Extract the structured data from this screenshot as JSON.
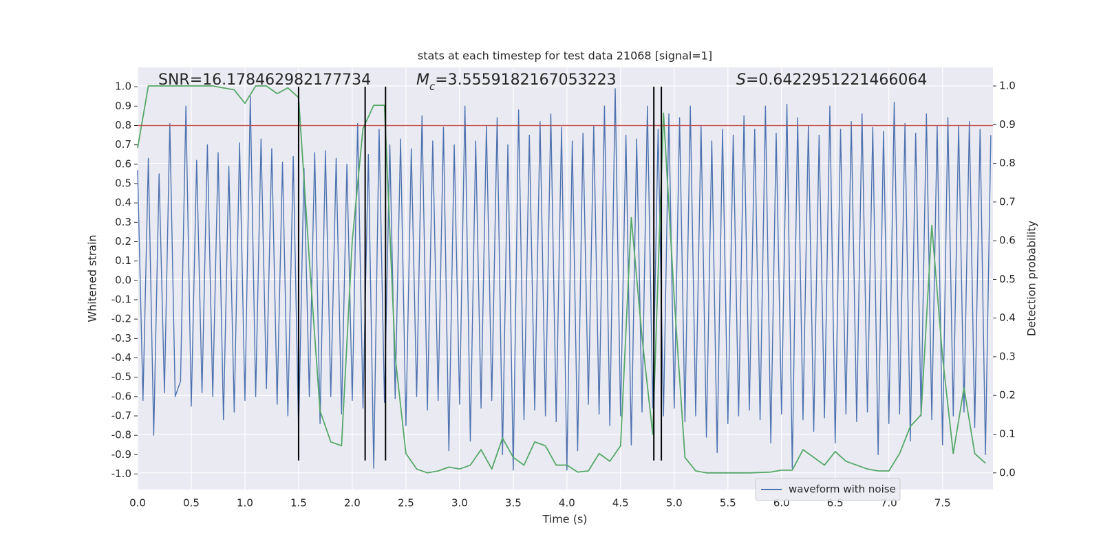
{
  "chart_data": {
    "type": "line",
    "title": "stats at each timestep for test data 21068 [signal=1]",
    "xlabel": "Time (s)",
    "ylabel": "Whitened strain",
    "y2label": "Detection probability",
    "annotations": {
      "snr": "SNR=16.178462982177734",
      "mc": {
        "symbol": "M",
        "subscript": "c",
        "value": "=3.5559182167053223"
      },
      "s": {
        "symbol": "S",
        "value": "=0.6422951221466064"
      }
    },
    "xlim": [
      0,
      7.97
    ],
    "ylim": [
      -1.08,
      1.1
    ],
    "y2lim": [
      -0.043,
      1.048
    ],
    "xticks": [
      {
        "value": 0,
        "label": "0.0"
      },
      0.5,
      {
        "value": 1,
        "label": "1.0"
      },
      1.5,
      {
        "value": 2,
        "label": "2.0"
      },
      2.5,
      {
        "value": 3,
        "label": "3.0"
      },
      3.5,
      {
        "value": 4,
        "label": "4.0"
      },
      4.5,
      {
        "value": 5,
        "label": "5.0"
      },
      5.5,
      {
        "value": 6,
        "label": "6.0"
      },
      6.5,
      {
        "value": 7,
        "label": "7.0"
      },
      7.5
    ],
    "yticks": [
      {
        "value": -1,
        "label": "-1.0"
      },
      -0.9,
      -0.8,
      -0.7,
      -0.6,
      -0.5,
      -0.4,
      -0.3,
      -0.2,
      -0.1,
      {
        "value": 0,
        "label": "0.0"
      },
      0.1,
      0.2,
      0.3,
      0.4,
      0.5,
      0.6,
      0.7,
      0.8,
      0.9,
      {
        "value": 1,
        "label": "1.0"
      }
    ],
    "y2ticks": [
      {
        "value": 0,
        "label": "0.0"
      },
      0.1,
      0.2,
      0.3,
      0.4,
      0.5,
      0.6,
      0.7,
      0.8,
      0.9,
      {
        "value": 1,
        "label": "1.0"
      }
    ],
    "grid": true,
    "legend": "lower right",
    "series": [
      {
        "name": "waveform with noise",
        "color": "#4c72b0",
        "x": [
          0,
          0.05,
          0.1,
          0.15,
          0.2,
          0.25,
          0.3,
          0.35,
          0.4,
          0.45,
          0.5,
          0.55,
          0.6,
          0.65,
          0.7,
          0.75,
          0.8,
          0.85,
          0.9,
          0.95,
          1,
          1.05,
          1.1,
          1.15,
          1.2,
          1.25,
          1.3,
          1.35,
          1.4,
          1.45,
          1.5,
          1.55,
          1.6,
          1.65,
          1.7,
          1.75,
          1.8,
          1.85,
          1.9,
          1.95,
          2,
          2.05,
          2.1,
          2.15,
          2.2,
          2.25,
          2.3,
          2.35,
          2.4,
          2.45,
          2.5,
          2.55,
          2.6,
          2.65,
          2.7,
          2.75,
          2.8,
          2.85,
          2.9,
          2.95,
          3,
          3.05,
          3.1,
          3.15,
          3.2,
          3.25,
          3.3,
          3.35,
          3.4,
          3.45,
          3.5,
          3.55,
          3.6,
          3.65,
          3.7,
          3.75,
          3.8,
          3.85,
          3.9,
          3.95,
          4,
          4.05,
          4.1,
          4.15,
          4.2,
          4.25,
          4.3,
          4.35,
          4.4,
          4.45,
          4.5,
          4.55,
          4.6,
          4.65,
          4.7,
          4.75,
          4.8,
          4.85,
          4.9,
          4.95,
          5,
          5.05,
          5.1,
          5.15,
          5.2,
          5.25,
          5.3,
          5.35,
          5.4,
          5.45,
          5.5,
          5.55,
          5.6,
          5.65,
          5.7,
          5.75,
          5.8,
          5.85,
          5.9,
          5.95,
          6,
          6.05,
          6.1,
          6.15,
          6.2,
          6.25,
          6.3,
          6.35,
          6.4,
          6.45,
          6.5,
          6.55,
          6.6,
          6.65,
          6.7,
          6.75,
          6.8,
          6.85,
          6.9,
          6.95,
          7,
          7.05,
          7.1,
          7.15,
          7.2,
          7.25,
          7.3,
          7.35,
          7.4,
          7.45,
          7.5,
          7.55,
          7.6,
          7.65,
          7.7,
          7.75,
          7.8,
          7.85,
          7.9,
          7.95
        ],
        "values": [
          0.57,
          -0.62,
          0.63,
          -0.8,
          0.55,
          -0.58,
          0.81,
          -0.6,
          -0.52,
          0.9,
          -0.65,
          0.62,
          -0.58,
          0.7,
          -0.6,
          0.66,
          -0.72,
          0.59,
          -0.68,
          0.71,
          -0.62,
          0.95,
          -0.6,
          0.73,
          -0.56,
          0.68,
          -0.64,
          0.61,
          -0.7,
          0.64,
          -0.78,
          0.58,
          -0.6,
          0.66,
          -0.74,
          0.67,
          -0.6,
          0.63,
          -0.69,
          0.6,
          -0.62,
          0.81,
          -0.66,
          0.65,
          -0.97,
          0.78,
          -0.63,
          0.7,
          -0.61,
          0.73,
          -0.75,
          0.68,
          -0.6,
          0.85,
          -0.67,
          0.72,
          -0.62,
          0.79,
          -0.88,
          0.7,
          -0.64,
          0.9,
          -0.83,
          0.72,
          -0.66,
          0.8,
          -0.62,
          0.84,
          -0.9,
          0.7,
          -0.98,
          0.88,
          -0.72,
          0.75,
          -0.67,
          0.82,
          -0.7,
          0.86,
          -0.73,
          0.79,
          -0.98,
          0.72,
          -0.88,
          0.76,
          -0.64,
          0.8,
          -0.69,
          0.9,
          -0.75,
          0.99,
          -0.7,
          0.75,
          -0.85,
          0.73,
          -0.68,
          0.9,
          -0.66,
          0.78,
          -0.7,
          0.86,
          -0.66,
          0.84,
          -0.73,
          0.9,
          -0.7,
          0.8,
          -0.81,
          0.72,
          -0.89,
          0.78,
          -0.74,
          0.75,
          -0.7,
          0.85,
          -0.67,
          0.78,
          -0.72,
          0.9,
          -0.84,
          0.76,
          -0.69,
          0.91,
          -0.97,
          0.84,
          -0.72,
          0.8,
          -0.78,
          0.75,
          -0.71,
          0.9,
          -0.84,
          0.78,
          -0.69,
          0.82,
          -0.73,
          0.86,
          -0.68,
          0.79,
          -0.9,
          0.77,
          -0.74,
          0.92,
          -0.69,
          0.81,
          -0.83,
          0.76,
          -0.7,
          0.86,
          -0.72,
          0.8,
          -0.85,
          0.84,
          -0.7,
          0.8,
          -0.68,
          0.82,
          -0.76,
          0.78,
          -0.9,
          0.75
        ]
      },
      {
        "color": "#55a868",
        "axis": "y2",
        "x": [
          0,
          0.1,
          0.2,
          0.3,
          0.4,
          0.5,
          0.6,
          0.7,
          0.8,
          0.9,
          1,
          1.1,
          1.2,
          1.3,
          1.4,
          1.5,
          1.6,
          1.7,
          1.8,
          1.9,
          2,
          2.1,
          2.2,
          2.3,
          2.4,
          2.5,
          2.6,
          2.7,
          2.8,
          2.9,
          3,
          3.1,
          3.2,
          3.3,
          3.4,
          3.5,
          3.6,
          3.7,
          3.8,
          3.9,
          4,
          4.1,
          4.2,
          4.3,
          4.4,
          4.5,
          4.6,
          4.7,
          4.8,
          4.9,
          5,
          5.1,
          5.2,
          5.3,
          5.4,
          5.5,
          5.6,
          5.7,
          5.8,
          5.9,
          6,
          6.1,
          6.2,
          6.3,
          6.4,
          6.5,
          6.6,
          6.7,
          6.8,
          6.9,
          7,
          7.1,
          7.2,
          7.3,
          7.4,
          7.5,
          7.6,
          7.7,
          7.8,
          7.9
        ],
        "values": [
          0.84,
          1,
          1,
          1,
          1,
          1,
          1,
          1,
          0.995,
          0.99,
          0.955,
          1,
          1,
          0.98,
          0.995,
          0.97,
          0.55,
          0.16,
          0.08,
          0.07,
          0.6,
          0.89,
          0.95,
          0.95,
          0.3,
          0.05,
          0.01,
          0,
          0.005,
          0.015,
          0.01,
          0.02,
          0.06,
          0.01,
          0.09,
          0.04,
          0.02,
          0.08,
          0.07,
          0.02,
          0.02,
          0.002,
          0.005,
          0.05,
          0.03,
          0.07,
          0.66,
          0.35,
          0.1,
          0.93,
          0.45,
          0.04,
          0.005,
          0,
          0,
          0,
          0,
          0,
          0.001,
          0.002,
          0.007,
          0.007,
          0.06,
          0.04,
          0.02,
          0.055,
          0.03,
          0.02,
          0.01,
          0.005,
          0.005,
          0.05,
          0.12,
          0.15,
          0.64,
          0.3,
          0.05,
          0.22,
          0.05,
          0.025
        ]
      }
    ],
    "hline": {
      "y": 0.8,
      "color": "#c44e52"
    },
    "vlines": {
      "x": [
        1.5,
        2.12,
        2.31,
        4.81,
        4.88
      ],
      "ymin": -0.93,
      "ymax": 1,
      "color": "#000000"
    }
  }
}
